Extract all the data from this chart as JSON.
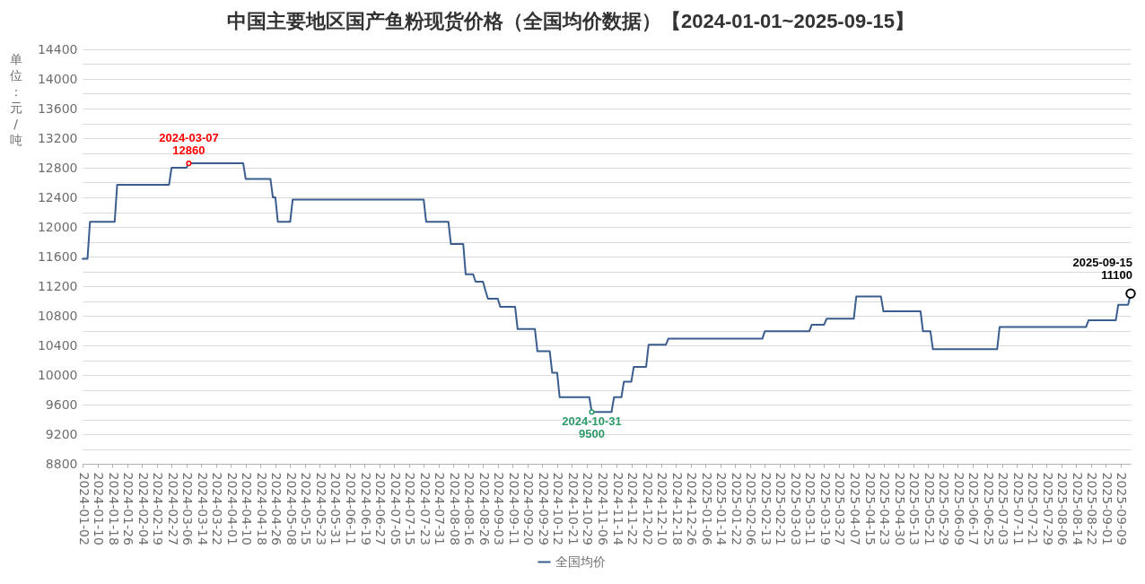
{
  "chart_data": {
    "type": "line",
    "title": "中国主要地区国产鱼粉现货价格（全国均价数据）【2024-01-01~2025-09-15】",
    "ylabel": "单位：元/吨",
    "categories": [
      "2024-01-02",
      null,
      null,
      null,
      null,
      null,
      "2024-01-10",
      null,
      null,
      null,
      null,
      null,
      "2024-01-18",
      null,
      null,
      null,
      null,
      null,
      "2024-01-26",
      null,
      null,
      null,
      null,
      null,
      "2024-02-04",
      null,
      null,
      null,
      null,
      null,
      "2024-02-19",
      null,
      null,
      null,
      null,
      null,
      "2024-02-27",
      null,
      null,
      null,
      null,
      null,
      "2024-03-06",
      null,
      null,
      null,
      null,
      null,
      "2024-03-14",
      null,
      null,
      null,
      null,
      null,
      "2024-03-22",
      null,
      null,
      null,
      null,
      null,
      "2024-04-01",
      null,
      null,
      null,
      null,
      null,
      "2024-04-10",
      null,
      null,
      null,
      null,
      null,
      "2024-04-18",
      null,
      null,
      null,
      null,
      null,
      "2024-04-26",
      null,
      null,
      null,
      null,
      null,
      "2024-05-08",
      null,
      null,
      null,
      null,
      null,
      "2024-05-15",
      null,
      null,
      null,
      null,
      null,
      "2024-05-23",
      null,
      null,
      null,
      null,
      null,
      "2024-05-31",
      null,
      null,
      null,
      null,
      null,
      "2024-06-11",
      null,
      null,
      null,
      null,
      null,
      "2024-06-19",
      null,
      null,
      null,
      null,
      null,
      "2024-06-27",
      null,
      null,
      null,
      null,
      null,
      "2024-07-05",
      null,
      null,
      null,
      null,
      null,
      "2024-07-15",
      null,
      null,
      null,
      null,
      null,
      "2024-07-23",
      null,
      null,
      null,
      null,
      null,
      "2024-07-31",
      null,
      null,
      null,
      null,
      null,
      "2024-08-08",
      null,
      null,
      null,
      null,
      null,
      "2024-08-16",
      null,
      null,
      null,
      null,
      null,
      "2024-08-26",
      null,
      null,
      null,
      null,
      null,
      "2024-09-03",
      null,
      null,
      null,
      null,
      null,
      "2024-09-11",
      null,
      null,
      null,
      null,
      null,
      "2024-09-20",
      null,
      null,
      null,
      null,
      null,
      "2024-09-29",
      null,
      null,
      null,
      null,
      null,
      "2024-10-12",
      null,
      null,
      null,
      null,
      null,
      "2024-10-21",
      null,
      null,
      null,
      null,
      null,
      "2024-10-29",
      null,
      null,
      null,
      null,
      null,
      "2024-11-06",
      null,
      null,
      null,
      null,
      null,
      "2024-11-14",
      null,
      null,
      null,
      null,
      null,
      "2024-11-22",
      null,
      null,
      null,
      null,
      null,
      "2024-12-02",
      null,
      null,
      null,
      null,
      null,
      "2024-12-10",
      null,
      null,
      null,
      null,
      null,
      "2024-12-18",
      null,
      null,
      null,
      null,
      null,
      "2024-12-26",
      null,
      null,
      null,
      null,
      null,
      "2025-01-06",
      null,
      null,
      null,
      null,
      null,
      "2025-01-14",
      null,
      null,
      null,
      null,
      null,
      "2025-01-22",
      null,
      null,
      null,
      null,
      null,
      "2025-02-06",
      null,
      null,
      null,
      null,
      null,
      "2025-02-13",
      null,
      null,
      null,
      null,
      null,
      "2025-02-21",
      null,
      null,
      null,
      null,
      null,
      "2025-03-03",
      null,
      null,
      null,
      null,
      null,
      "2025-03-11",
      null,
      null,
      null,
      null,
      null,
      "2025-03-19",
      null,
      null,
      null,
      null,
      null,
      "2025-03-27",
      null,
      null,
      null,
      null,
      null,
      "2025-04-07",
      null,
      null,
      null,
      null,
      null,
      "2025-04-15",
      null,
      null,
      null,
      null,
      null,
      "2025-04-23",
      null,
      null,
      null,
      null,
      null,
      "2025-04-30",
      null,
      null,
      null,
      null,
      null,
      "2025-05-13",
      null,
      null,
      null,
      null,
      null,
      "2025-05-21",
      null,
      null,
      null,
      null,
      null,
      "2025-05-29",
      null,
      null,
      null,
      null,
      null,
      "2025-06-09",
      null,
      null,
      null,
      null,
      null,
      "2025-06-17",
      null,
      null,
      null,
      null,
      null,
      "2025-06-25",
      null,
      null,
      null,
      null,
      null,
      "2025-07-03",
      null,
      null,
      null,
      null,
      null,
      "2025-07-11",
      null,
      null,
      null,
      null,
      null,
      "2025-07-21",
      null,
      null,
      null,
      null,
      null,
      "2025-07-29",
      null,
      null,
      null,
      null,
      null,
      "2025-08-06",
      null,
      null,
      null,
      null,
      null,
      "2025-08-14",
      null,
      null,
      null,
      null,
      null,
      "2025-08-22",
      null,
      null,
      null,
      null,
      null,
      "2025-09-01",
      null,
      null,
      null,
      null,
      null,
      "2025-09-09",
      null,
      null,
      null,
      null
    ],
    "series": [
      {
        "name": "全国均价",
        "color": "#3b5d8e",
        "values": [
          11570,
          11570,
          11570,
          12070,
          12070,
          12070,
          12070,
          12070,
          12070,
          12070,
          12070,
          12070,
          12070,
          12070,
          12570,
          12570,
          12570,
          12570,
          12570,
          12570,
          12570,
          12570,
          12570,
          12570,
          12570,
          12570,
          12570,
          12570,
          12570,
          12570,
          12570,
          12570,
          12570,
          12570,
          12570,
          12570,
          12800,
          12800,
          12800,
          12800,
          12800,
          12800,
          12800,
          12860,
          12860,
          12860,
          12860,
          12860,
          12860,
          12860,
          12860,
          12860,
          12860,
          12860,
          12860,
          12860,
          12860,
          12860,
          12860,
          12860,
          12860,
          12860,
          12860,
          12860,
          12860,
          12860,
          12650,
          12650,
          12650,
          12650,
          12650,
          12650,
          12650,
          12650,
          12650,
          12650,
          12650,
          12400,
          12400,
          12070,
          12070,
          12070,
          12070,
          12070,
          12070,
          12370,
          12370,
          12370,
          12370,
          12370,
          12370,
          12370,
          12370,
          12370,
          12370,
          12370,
          12370,
          12370,
          12370,
          12370,
          12370,
          12370,
          12370,
          12370,
          12370,
          12370,
          12370,
          12370,
          12370,
          12370,
          12370,
          12370,
          12370,
          12370,
          12370,
          12370,
          12370,
          12370,
          12370,
          12370,
          12370,
          12370,
          12370,
          12370,
          12370,
          12370,
          12370,
          12370,
          12370,
          12370,
          12370,
          12370,
          12370,
          12370,
          12370,
          12370,
          12370,
          12370,
          12370,
          12070,
          12070,
          12070,
          12070,
          12070,
          12070,
          12070,
          12070,
          12070,
          12070,
          11770,
          11770,
          11770,
          11770,
          11770,
          11770,
          11360,
          11360,
          11360,
          11360,
          11260,
          11260,
          11260,
          11260,
          11140,
          11030,
          11030,
          11030,
          11030,
          11030,
          10920,
          10920,
          10920,
          10920,
          10920,
          10920,
          10920,
          10620,
          10620,
          10620,
          10620,
          10620,
          10620,
          10620,
          10620,
          10320,
          10320,
          10320,
          10320,
          10320,
          10320,
          10030,
          10030,
          10030,
          9700,
          9700,
          9700,
          9700,
          9700,
          9700,
          9700,
          9700,
          9700,
          9700,
          9700,
          9700,
          9700,
          9500,
          9500,
          9500,
          9500,
          9500,
          9500,
          9500,
          9500,
          9500,
          9700,
          9700,
          9700,
          9700,
          9910,
          9910,
          9910,
          9910,
          10110,
          10110,
          10110,
          10110,
          10110,
          10110,
          10410,
          10410,
          10410,
          10410,
          10410,
          10410,
          10410,
          10410,
          10490,
          10490,
          10490,
          10490,
          10490,
          10490,
          10490,
          10490,
          10490,
          10490,
          10490,
          10490,
          10490,
          10490,
          10490,
          10490,
          10490,
          10490,
          10490,
          10490,
          10490,
          10490,
          10490,
          10490,
          10490,
          10490,
          10490,
          10490,
          10490,
          10490,
          10490,
          10490,
          10490,
          10490,
          10490,
          10490,
          10490,
          10490,
          10490,
          10590,
          10590,
          10590,
          10590,
          10590,
          10590,
          10590,
          10590,
          10590,
          10590,
          10590,
          10590,
          10590,
          10590,
          10590,
          10590,
          10590,
          10590,
          10590,
          10680,
          10680,
          10680,
          10680,
          10680,
          10680,
          10760,
          10760,
          10760,
          10760,
          10760,
          10760,
          10760,
          10760,
          10760,
          10760,
          10760,
          10760,
          11060,
          11060,
          11060,
          11060,
          11060,
          11060,
          11060,
          11060,
          11060,
          11060,
          11060,
          10860,
          10860,
          10860,
          10860,
          10860,
          10860,
          10860,
          10860,
          10860,
          10860,
          10860,
          10860,
          10860,
          10860,
          10860,
          10860,
          10590,
          10590,
          10590,
          10590,
          10350,
          10350,
          10350,
          10350,
          10350,
          10350,
          10350,
          10350,
          10350,
          10350,
          10350,
          10350,
          10350,
          10350,
          10350,
          10350,
          10350,
          10350,
          10350,
          10350,
          10350,
          10350,
          10350,
          10350,
          10350,
          10350,
          10350,
          10650,
          10650,
          10650,
          10650,
          10650,
          10650,
          10650,
          10650,
          10650,
          10650,
          10650,
          10650,
          10650,
          10650,
          10650,
          10650,
          10650,
          10650,
          10650,
          10650,
          10650,
          10650,
          10650,
          10650,
          10650,
          10650,
          10650,
          10650,
          10650,
          10650,
          10650,
          10650,
          10650,
          10650,
          10650,
          10650,
          10740,
          10740,
          10740,
          10740,
          10740,
          10740,
          10740,
          10740,
          10740,
          10740,
          10740,
          10740,
          10950,
          10950,
          10950,
          10950,
          10950,
          11100
        ]
      }
    ],
    "ylim": [
      8800,
      14400
    ],
    "yticks": [
      8800,
      {
        "value": 9000,
        "label": null
      },
      9200,
      {
        "value": 9400,
        "label": null
      },
      9600,
      {
        "value": 9800,
        "label": null
      },
      10000,
      {
        "value": 10200,
        "label": null
      },
      10400,
      {
        "value": 10600,
        "label": null
      },
      10800,
      {
        "value": 11000,
        "label": null
      },
      11200,
      {
        "value": 11400,
        "label": null
      },
      11600,
      {
        "value": 11800,
        "label": null
      },
      12000,
      {
        "value": 12200,
        "label": null
      },
      12400,
      {
        "value": 12600,
        "label": null
      },
      12800,
      {
        "value": 13000,
        "label": null
      },
      13200,
      {
        "value": 13400,
        "label": null
      },
      13600,
      {
        "value": 13800,
        "label": null
      },
      14000,
      {
        "value": 14200,
        "label": null
      },
      14400
    ],
    "grid": "y",
    "legend": "bottom",
    "annotations": [
      {
        "text": "2024-03-07\n12860",
        "y": 12860
      },
      {
        "text": "2024-10-31\n9500",
        "y": 9500
      },
      "2025-09-15\n11100"
    ]
  }
}
